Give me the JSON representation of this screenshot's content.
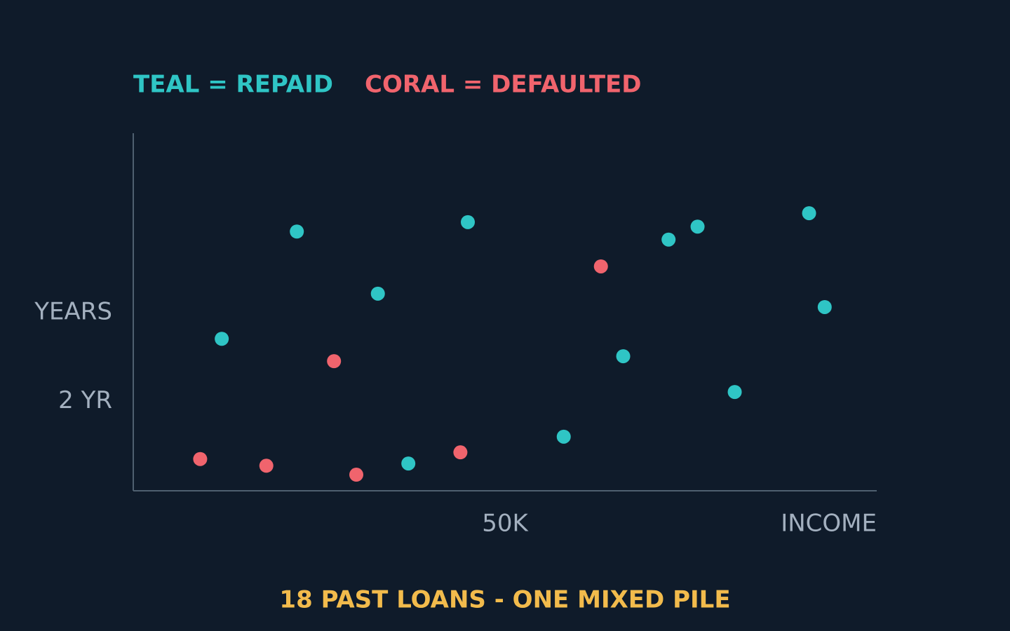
{
  "chart_data": {
    "type": "scatter",
    "caption": "18 PAST LOANS - ONE MIXED PILE",
    "x_label": "INCOME",
    "y_label": "YEARS",
    "xlim": [
      0,
      100
    ],
    "ylim": [
      0,
      8
    ],
    "xticks": [
      {
        "value": 50,
        "label": "50K"
      }
    ],
    "yticks": [
      {
        "value": 2,
        "label": "2 YR"
      }
    ],
    "grid": false,
    "series": [
      {
        "name": "TEAL = REPAID",
        "color": "#2fc5c5",
        "x": [
          11.9,
          22.0,
          32.9,
          37.0,
          45.0,
          57.9,
          65.9,
          72.0,
          75.9,
          80.9,
          90.9,
          93.0
        ],
        "values": [
          3.4,
          5.8,
          4.41,
          0.61,
          6.01,
          1.21,
          3.01,
          5.62,
          5.91,
          2.21,
          6.21,
          4.11
        ]
      },
      {
        "name": "CORAL = DEFAULTED",
        "color": "#f0646d",
        "x": [
          9.0,
          17.9,
          27.0,
          30.0,
          44.0,
          62.9
        ],
        "values": [
          0.71,
          0.56,
          2.9,
          0.36,
          0.86,
          5.02
        ]
      }
    ]
  }
}
